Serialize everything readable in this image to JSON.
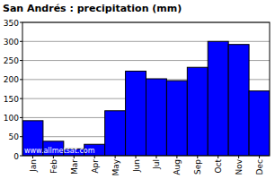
{
  "chart_data": {
    "type": "bar",
    "title": "San Andrés : precipitation (mm)",
    "categories": [
      "Jan",
      "Feb",
      "Mar",
      "Apr",
      "May",
      "Jun",
      "Jul",
      "Aug",
      "Sep",
      "Oct",
      "Nov",
      "Dec"
    ],
    "values": [
      92,
      38,
      18,
      30,
      118,
      222,
      202,
      197,
      232,
      300,
      292,
      170
    ],
    "color": "#0000ff",
    "ylim": [
      0,
      350
    ],
    "yticks": [
      0,
      50,
      100,
      150,
      200,
      250,
      300,
      350
    ],
    "grid": true,
    "annotation": "www.allmetsat.com"
  }
}
